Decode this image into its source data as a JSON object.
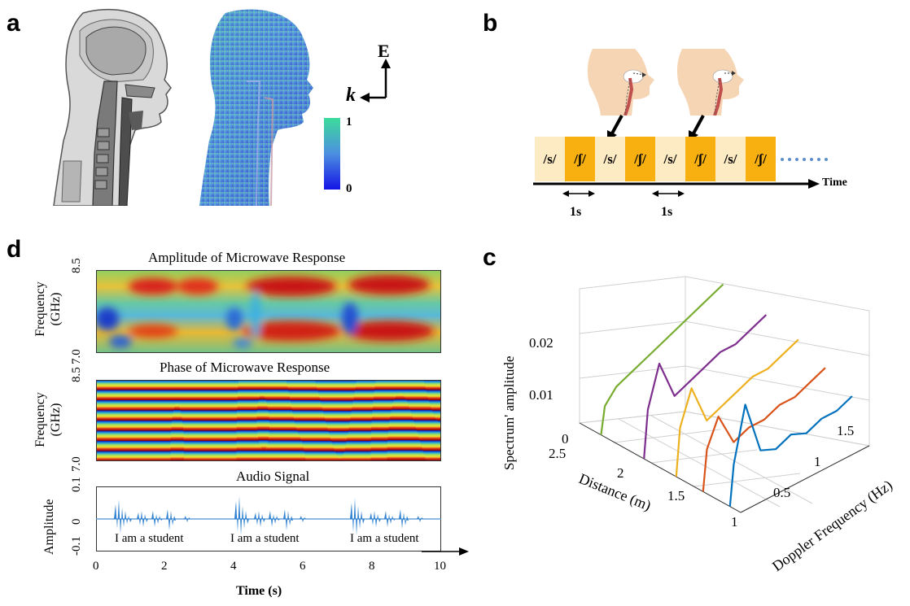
{
  "panel_a": {
    "letter": "a",
    "efield_label": "E",
    "k_label": "k",
    "colorbar_max": "1",
    "colorbar_min": "0"
  },
  "panel_b": {
    "letter": "b",
    "phonemes": [
      "/s/",
      "/ʃ/",
      "/s/",
      "/ʃ/",
      "/s/",
      "/ʃ/",
      "/s/",
      "/ʃ/"
    ],
    "time_label": "Time",
    "interval_labels": [
      "1s",
      "1s"
    ],
    "colors": {
      "s": "#fdebc4",
      "sh": "#f7b00f",
      "dots": "#5b8fc9"
    }
  },
  "panel_d": {
    "letter": "d",
    "amp_title": "Amplitude of Microwave Response",
    "phase_title": "Phase of Microwave Response",
    "audio_title": "Audio Signal",
    "freq_ylabel_1": "Frequency",
    "freq_ylabel_2": "(GHz)",
    "freq_ticks": [
      "8.5",
      "7.0"
    ],
    "audio_ylabel": "Amplitude",
    "audio_ticks": [
      "0.1",
      "0",
      "-0.1"
    ],
    "sentences": [
      "I am a student",
      "I am a student",
      "I am a student"
    ],
    "xlabel": "Time (s)",
    "xticks": [
      "0",
      "2",
      "4",
      "6",
      "8",
      "10"
    ]
  },
  "panel_c": {
    "letter": "c",
    "zlabel": "Spectrum' amplitude",
    "xlabel": "Distance (m)",
    "ylabel": "Doppler Frequency (Hz)",
    "zticks": [
      "0.02",
      "0.01",
      "0"
    ],
    "distance_ticks": [
      "2.5",
      "2",
      "1.5",
      "1"
    ],
    "doppler_ticks": [
      "1.5",
      "1",
      "0.5"
    ]
  },
  "chart_data": [
    {
      "type": "line",
      "xlabel": "Distance (m)",
      "ylabel": "Doppler Frequency (Hz)",
      "zlabel": "Spectrum' amplitude",
      "zlim": [
        0,
        0.02
      ],
      "series": [
        {
          "color": "#77ac30",
          "distance": 2.3,
          "doppler": [
            0.05,
            0.2,
            0.4,
            0.6,
            0.8,
            1.0,
            1.2,
            1.4,
            1.6
          ],
          "values": [
            0.004,
            0.006,
            0.007,
            0.008,
            0.009,
            0.01,
            0.011,
            0.012,
            0.013
          ]
        },
        {
          "color": "#7e2f8e",
          "distance": 1.9,
          "doppler": [
            0.05,
            0.2,
            0.4,
            0.6,
            0.8,
            1.0,
            1.2,
            1.4,
            1.6
          ],
          "values": [
            0.007,
            0.013,
            0.007,
            0.008,
            0.009,
            0.01,
            0.01,
            0.011,
            0.012
          ]
        },
        {
          "color": "#edb120",
          "distance": 1.6,
          "doppler": [
            0.05,
            0.2,
            0.4,
            0.6,
            0.8,
            1.0,
            1.2,
            1.4,
            1.6
          ],
          "values": [
            0.007,
            0.012,
            0.006,
            0.007,
            0.008,
            0.009,
            0.009,
            0.01,
            0.011
          ]
        },
        {
          "color": "#d95319",
          "distance": 1.35,
          "doppler": [
            0.05,
            0.2,
            0.4,
            0.6,
            0.8,
            1.0,
            1.2,
            1.4,
            1.6
          ],
          "values": [
            0.006,
            0.01,
            0.005,
            0.006,
            0.006,
            0.007,
            0.007,
            0.008,
            0.009
          ]
        },
        {
          "color": "#0072bd",
          "distance": 1.1,
          "doppler": [
            0.05,
            0.2,
            0.4,
            0.6,
            0.8,
            1.0,
            1.2,
            1.4,
            1.6
          ],
          "values": [
            0.006,
            0.014,
            0.006,
            0.005,
            0.006,
            0.005,
            0.006,
            0.006,
            0.007
          ]
        }
      ]
    }
  ]
}
